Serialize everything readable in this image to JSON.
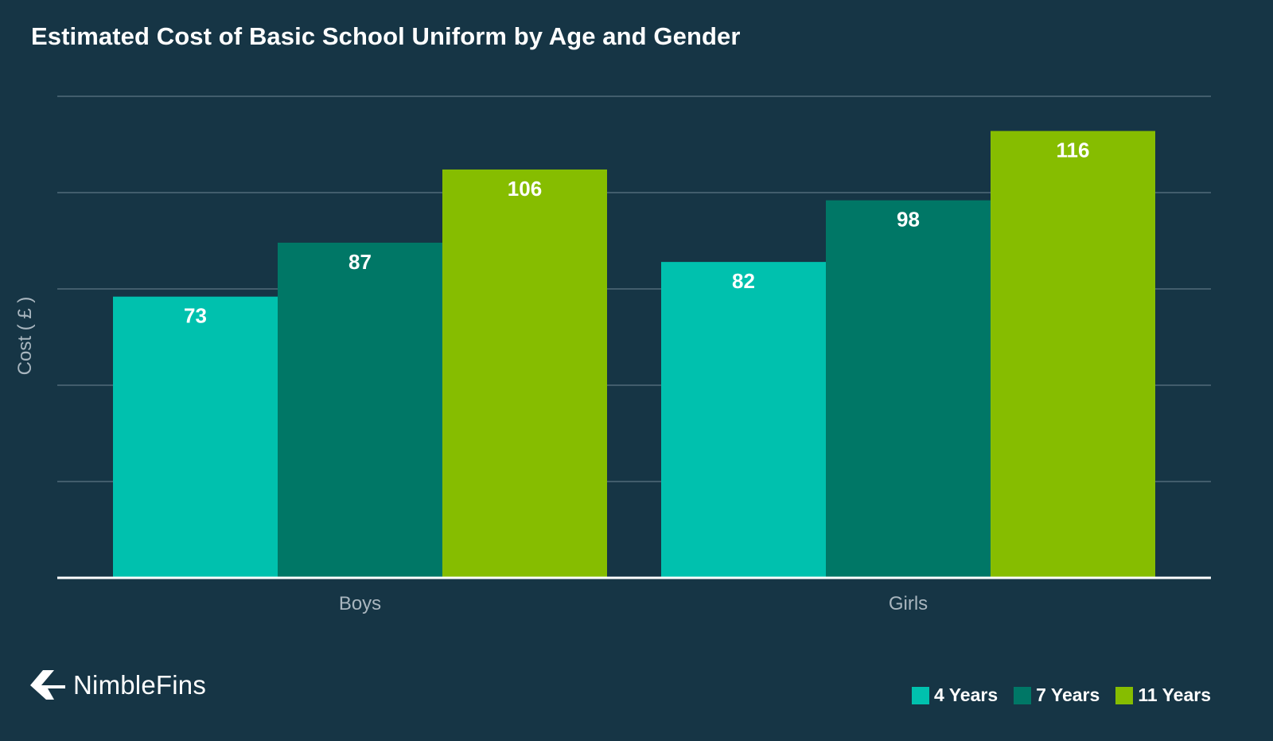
{
  "chart_data": {
    "type": "bar",
    "title": "Estimated Cost of Basic School Uniform by Age and Gender",
    "xlabel": "",
    "ylabel": "Cost ( £ )",
    "categories": [
      "Boys",
      "Girls"
    ],
    "series": [
      {
        "name": "4 Years",
        "values": [
          73,
          82
        ],
        "color": "#00c1ae"
      },
      {
        "name": "7 Years",
        "values": [
          87,
          98
        ],
        "color": "#007766"
      },
      {
        "name": "11 Years",
        "values": [
          106,
          116
        ],
        "color": "#86bd00"
      }
    ],
    "ylim": [
      0,
      125
    ],
    "grid": true,
    "legend": "bottom-right",
    "data_labels": true
  },
  "colors": {
    "background": "#163545",
    "gridline": "#6e8593",
    "baseline": "#ffffff",
    "tick_label": "#a9b6bf",
    "data_label": "#ffffff"
  },
  "brand": {
    "name": "NimbleFins",
    "icon": "chevron-left-icon"
  }
}
